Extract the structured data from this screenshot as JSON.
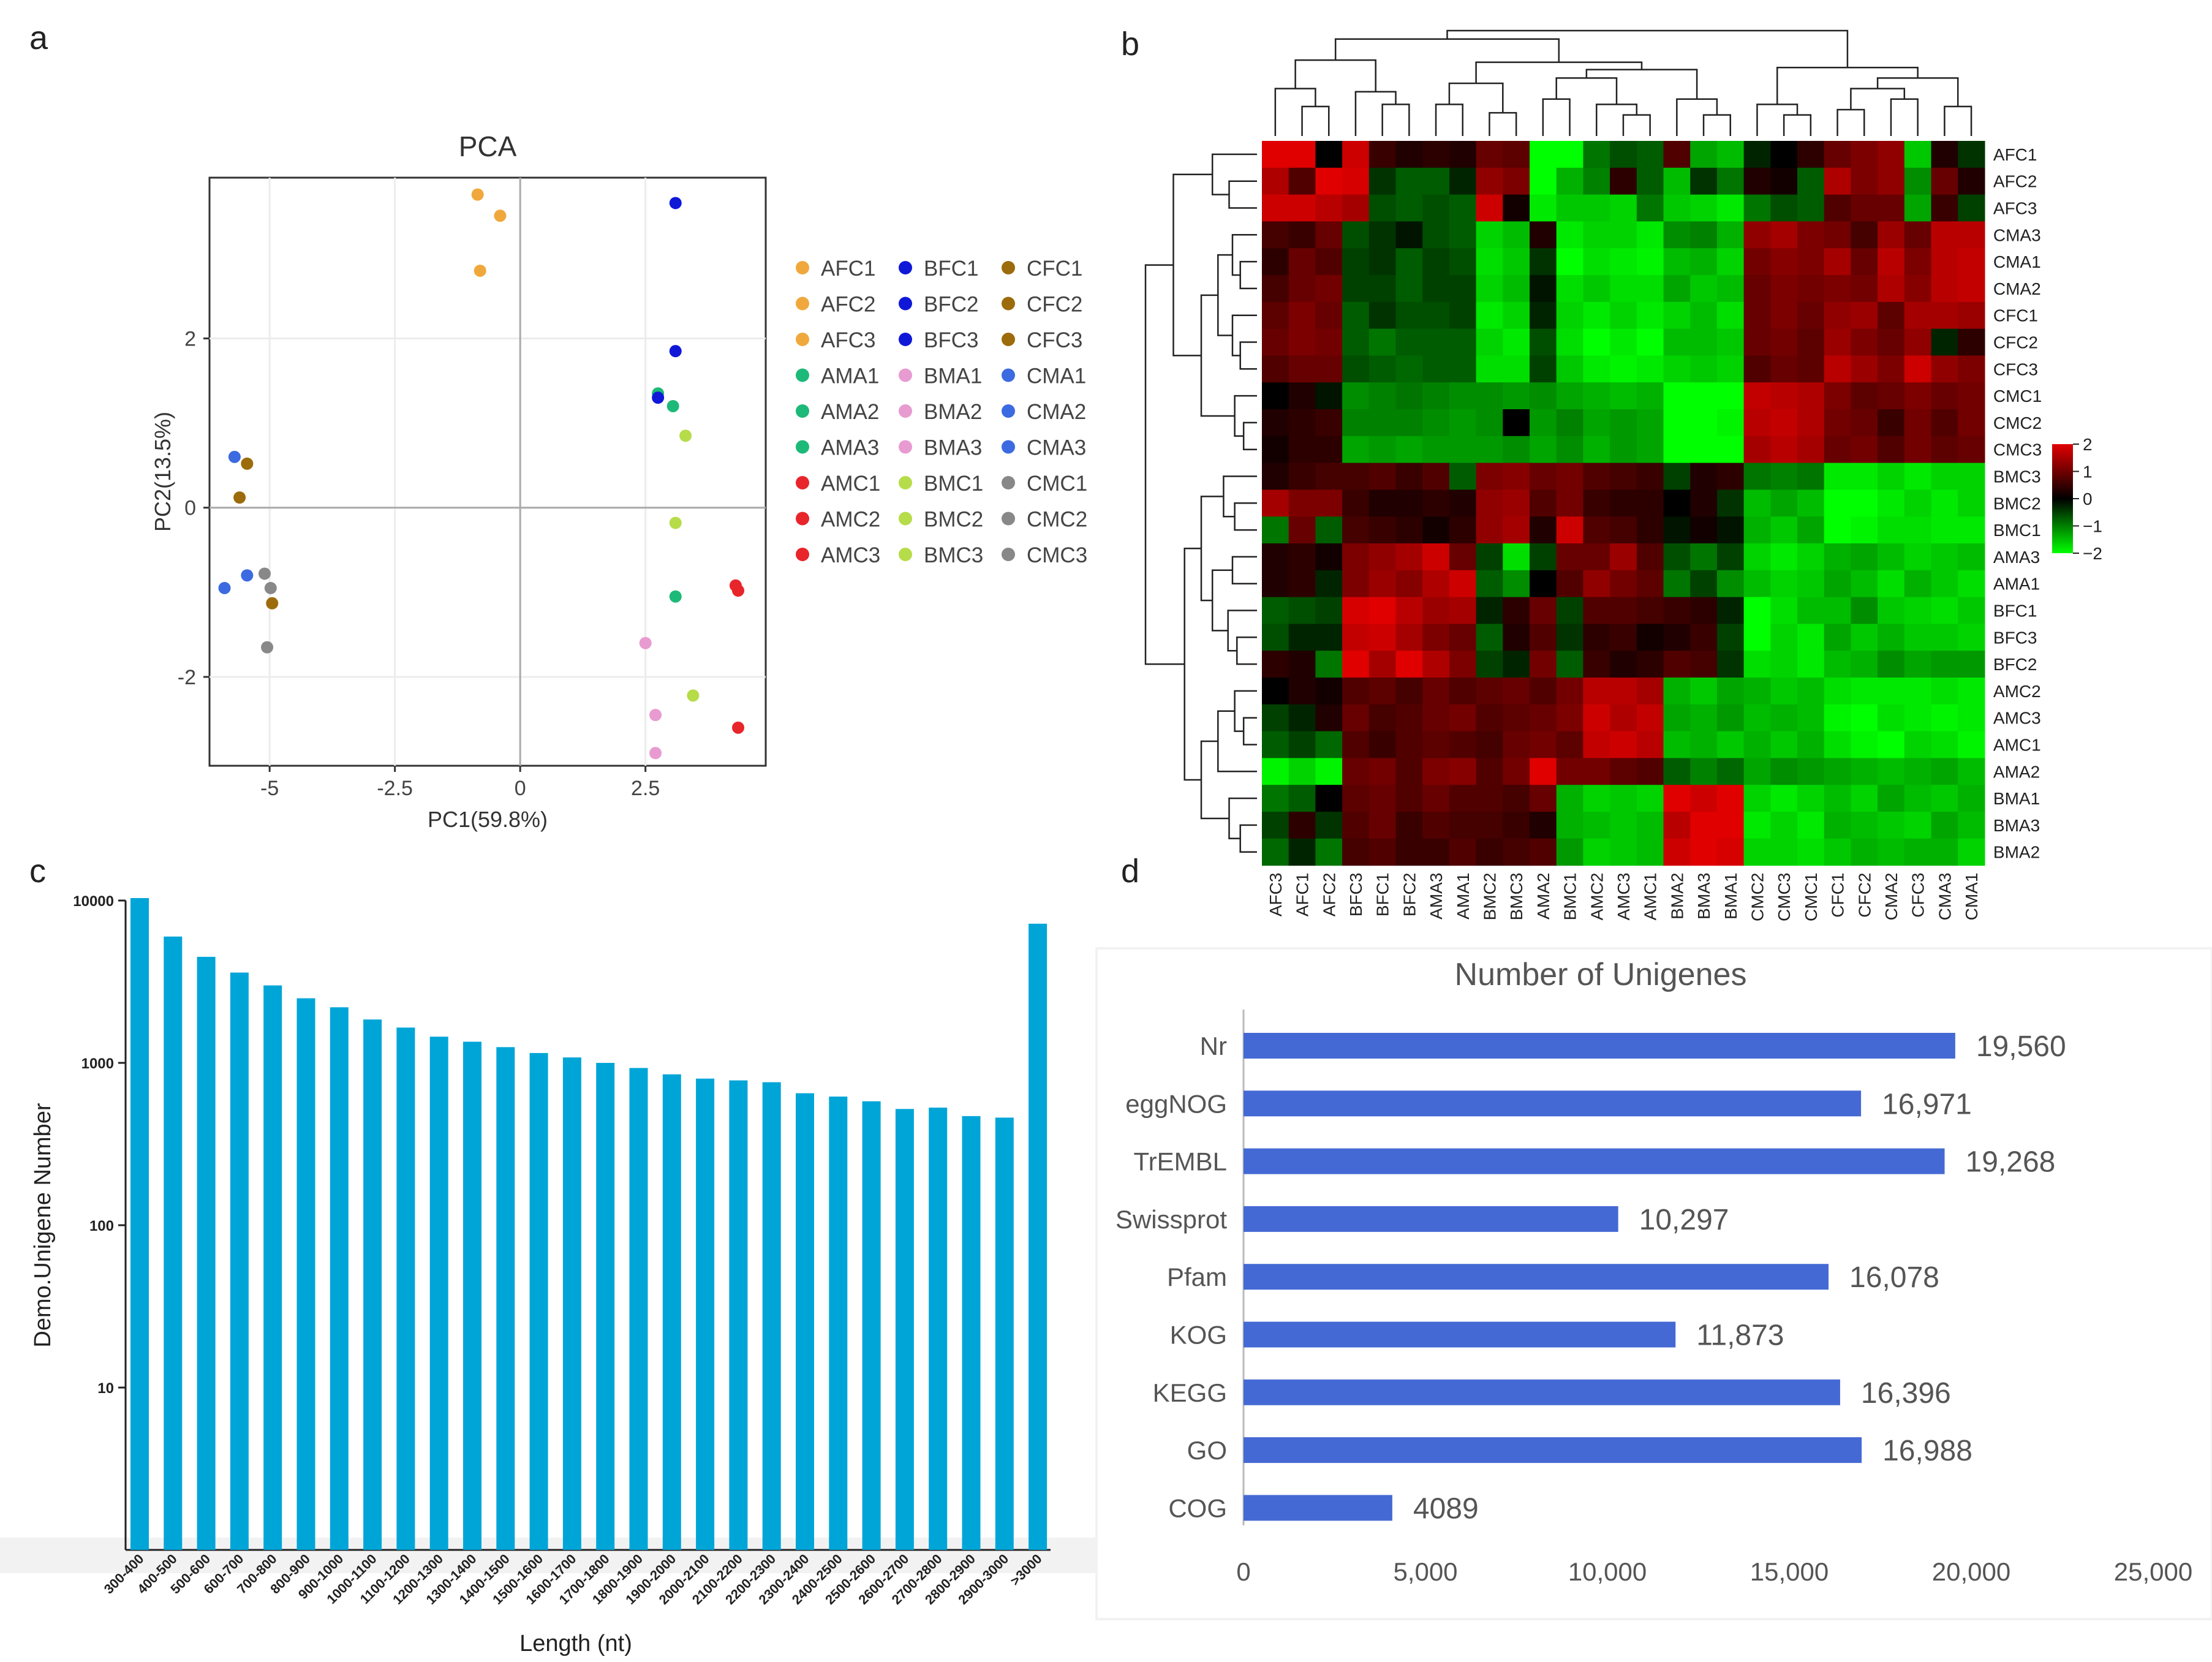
{
  "panel_labels": [
    "a",
    "b",
    "c",
    "d"
  ],
  "colors": {
    "AF": "#f0a83c",
    "AMA": "#1db979",
    "AMC": "#e8252b",
    "BFC": "#1018d8",
    "BMA": "#e89bd0",
    "BMC": "#b6dc4a",
    "CFC": "#9c6b0c",
    "CMA": "#3c6ae0",
    "CMC": "#888888",
    "bar_c": "#00a5d8",
    "bar_d": "#4569d4",
    "heat_high": "#e00000",
    "heat_mid": "#000000",
    "heat_low": "#00ff00"
  },
  "chart_data": [
    {
      "type": "scatter",
      "title": "PCA",
      "xlabel": "PC1(59.8%)",
      "ylabel": "PC2(13.5%)",
      "xlim": [
        -6.2,
        4.9
      ],
      "ylim": [
        -3.05,
        3.9
      ],
      "xticks": [
        -5,
        -2.5,
        0,
        2.5
      ],
      "xtick_labels": [
        "-5",
        "-2.5",
        "0",
        "2.5"
      ],
      "yticks": [
        -2,
        0,
        2
      ],
      "ytick_labels": [
        "-2",
        "0",
        "2"
      ],
      "grid": true,
      "legend_position": "right",
      "series": [
        {
          "name": "AFC1",
          "color": "#f0a83c",
          "x": -0.4,
          "y": 3.45
        },
        {
          "name": "AFC2",
          "color": "#f0a83c",
          "x": -0.8,
          "y": 2.8
        },
        {
          "name": "AFC3",
          "color": "#f0a83c",
          "x": -0.85,
          "y": 3.7
        },
        {
          "name": "AMA1",
          "color": "#1db979",
          "x": 2.75,
          "y": 1.35
        },
        {
          "name": "AMA2",
          "color": "#1db979",
          "x": 3.1,
          "y": -1.05
        },
        {
          "name": "AMA3",
          "color": "#1db979",
          "x": 3.05,
          "y": 1.2
        },
        {
          "name": "AMC1",
          "color": "#e8252b",
          "x": 4.35,
          "y": -0.98
        },
        {
          "name": "AMC2",
          "color": "#e8252b",
          "x": 4.3,
          "y": -0.92
        },
        {
          "name": "AMC3",
          "color": "#e8252b",
          "x": 4.35,
          "y": -2.6
        },
        {
          "name": "BFC1",
          "color": "#1018d8",
          "x": 3.1,
          "y": 3.6
        },
        {
          "name": "BFC2",
          "color": "#1018d8",
          "x": 3.1,
          "y": 1.85
        },
        {
          "name": "BFC3",
          "color": "#1018d8",
          "x": 2.75,
          "y": 1.3
        },
        {
          "name": "BMA1",
          "color": "#e89bd0",
          "x": 2.5,
          "y": -1.6
        },
        {
          "name": "BMA2",
          "color": "#e89bd0",
          "x": 2.7,
          "y": -2.45
        },
        {
          "name": "BMA3",
          "color": "#e89bd0",
          "x": 2.7,
          "y": -2.9
        },
        {
          "name": "BMC1",
          "color": "#b6dc4a",
          "x": 3.3,
          "y": 0.85
        },
        {
          "name": "BMC2",
          "color": "#b6dc4a",
          "x": 3.1,
          "y": -0.18
        },
        {
          "name": "BMC3",
          "color": "#b6dc4a",
          "x": 3.45,
          "y": -2.22
        },
        {
          "name": "CFC1",
          "color": "#9c6b0c",
          "x": -5.45,
          "y": 0.52
        },
        {
          "name": "CFC2",
          "color": "#9c6b0c",
          "x": -5.6,
          "y": 0.12
        },
        {
          "name": "CFC3",
          "color": "#9c6b0c",
          "x": -4.95,
          "y": -1.13
        },
        {
          "name": "CMA1",
          "color": "#3c6ae0",
          "x": -5.7,
          "y": 0.6
        },
        {
          "name": "CMA2",
          "color": "#3c6ae0",
          "x": -5.45,
          "y": -0.8
        },
        {
          "name": "CMA3",
          "color": "#3c6ae0",
          "x": -5.9,
          "y": -0.95
        },
        {
          "name": "CMC1",
          "color": "#888888",
          "x": -5.1,
          "y": -0.78
        },
        {
          "name": "CMC2",
          "color": "#888888",
          "x": -4.98,
          "y": -0.95
        },
        {
          "name": "CMC3",
          "color": "#888888",
          "x": -5.05,
          "y": -1.65
        }
      ]
    },
    {
      "type": "heatmap",
      "rows": [
        "AFC1",
        "AFC2",
        "AFC3",
        "CMA3",
        "CMA1",
        "CMA2",
        "CFC1",
        "CFC2",
        "CFC3",
        "CMC1",
        "CMC2",
        "CMC3",
        "BMC3",
        "BMC2",
        "BMC1",
        "AMA3",
        "AMA1",
        "BFC1",
        "BFC3",
        "BFC2",
        "AMC2",
        "AMC3",
        "AMC1",
        "AMA2",
        "BMA1",
        "BMA3",
        "BMA2"
      ],
      "columns": [
        "AFC3",
        "AFC1",
        "AFC2",
        "BFC3",
        "BFC1",
        "BFC2",
        "AMA3",
        "AMA1",
        "BMC2",
        "BMC3",
        "AMA2",
        "BMC1",
        "AMC2",
        "AMC3",
        "AMC1",
        "BMA2",
        "BMA3",
        "BMA1",
        "CMC2",
        "CMC3",
        "CMC1",
        "CFC1",
        "CFC2",
        "CMA2",
        "CFC3",
        "CMA3",
        "CMA1"
      ],
      "colorbar": {
        "ticks": [
          2,
          1,
          0,
          -1,
          -2
        ],
        "labels": [
          "2",
          "1",
          "0",
          "−1",
          "−2"
        ],
        "range": [
          -2,
          2
        ]
      },
      "values": [
        [
          2.0,
          2.0,
          0.0,
          1.8,
          0.4,
          0.2,
          0.3,
          0.2,
          0.8,
          0.7,
          -2.0,
          -2.0,
          -0.8,
          -0.5,
          -0.6,
          0.6,
          -1.2,
          -1.4,
          -0.2,
          0.0,
          0.3,
          0.8,
          1.0,
          1.2,
          -1.5,
          0.2,
          -0.3
        ],
        [
          1.5,
          0.6,
          2.0,
          1.9,
          -0.3,
          -0.6,
          -0.6,
          -0.2,
          1.2,
          1.0,
          -2.0,
          -1.3,
          -0.9,
          0.3,
          -0.6,
          -1.4,
          -0.3,
          -0.8,
          0.2,
          0.1,
          -0.6,
          1.5,
          1.0,
          1.2,
          -1.0,
          0.8,
          0.2
        ],
        [
          1.8,
          1.8,
          1.6,
          1.4,
          -0.5,
          -0.6,
          -0.5,
          -0.6,
          1.8,
          0.1,
          -1.8,
          -1.5,
          -1.5,
          -1.6,
          -0.8,
          -1.5,
          -1.6,
          -1.8,
          -0.8,
          -0.5,
          -0.6,
          0.6,
          0.8,
          0.8,
          -1.2,
          0.4,
          -0.4
        ],
        [
          0.5,
          0.4,
          0.8,
          -0.5,
          -0.3,
          -0.1,
          -0.5,
          -0.6,
          -1.6,
          -1.4,
          0.2,
          -1.8,
          -1.6,
          -1.6,
          -1.8,
          -1.0,
          -0.9,
          -1.3,
          1.2,
          1.4,
          1.0,
          0.9,
          0.5,
          1.3,
          0.8,
          1.6,
          1.6
        ],
        [
          0.3,
          0.8,
          0.6,
          -0.4,
          -0.3,
          -0.6,
          -0.4,
          -0.5,
          -1.7,
          -1.5,
          -0.3,
          -2.0,
          -1.7,
          -1.8,
          -1.9,
          -1.4,
          -1.3,
          -1.6,
          0.9,
          1.1,
          1.0,
          1.4,
          0.8,
          1.6,
          1.0,
          1.6,
          1.7
        ],
        [
          0.5,
          0.8,
          0.9,
          -0.4,
          -0.4,
          -0.6,
          -0.4,
          -0.4,
          -1.6,
          -1.4,
          -0.1,
          -1.7,
          -1.5,
          -1.7,
          -1.7,
          -1.2,
          -1.5,
          -1.4,
          0.8,
          1.0,
          0.9,
          1.0,
          0.9,
          1.5,
          1.1,
          1.6,
          1.7
        ],
        [
          0.7,
          1.0,
          0.8,
          -0.6,
          -0.3,
          -0.5,
          -0.5,
          -0.4,
          -1.8,
          -1.6,
          -0.2,
          -1.6,
          -1.8,
          -1.6,
          -1.8,
          -1.6,
          -1.4,
          -1.7,
          0.8,
          1.0,
          0.8,
          1.2,
          1.3,
          0.7,
          1.4,
          1.4,
          1.3
        ],
        [
          0.8,
          1.0,
          0.9,
          -0.6,
          -0.8,
          -0.6,
          -0.6,
          -0.6,
          -1.6,
          -1.8,
          -0.5,
          -1.7,
          -2.0,
          -1.8,
          -2.0,
          -1.4,
          -1.4,
          -1.5,
          0.8,
          0.9,
          0.7,
          1.3,
          1.0,
          0.8,
          1.2,
          -0.2,
          0.3
        ],
        [
          0.6,
          0.8,
          0.8,
          -0.5,
          -0.6,
          -0.7,
          -0.6,
          -0.6,
          -1.7,
          -1.7,
          -0.4,
          -1.5,
          -1.8,
          -1.9,
          -1.8,
          -1.6,
          -1.5,
          -1.6,
          0.6,
          0.8,
          0.7,
          1.6,
          1.3,
          1.0,
          1.8,
          1.2,
          1.0
        ],
        [
          0.0,
          0.2,
          -0.1,
          -1.0,
          -0.9,
          -0.8,
          -0.9,
          -1.0,
          -1.0,
          -1.1,
          -1.0,
          -1.2,
          -1.3,
          -1.4,
          -1.3,
          -2.0,
          -2.0,
          -2.0,
          1.7,
          1.6,
          1.5,
          1.0,
          0.7,
          0.8,
          1.0,
          0.8,
          0.9
        ],
        [
          0.2,
          0.3,
          0.4,
          -0.9,
          -0.9,
          -0.9,
          -1.0,
          -1.1,
          -1.0,
          0.0,
          -1.1,
          -0.9,
          -1.2,
          -1.1,
          -1.2,
          -2.0,
          -2.0,
          -1.9,
          1.6,
          1.7,
          1.5,
          0.9,
          0.8,
          0.4,
          0.9,
          0.6,
          0.9
        ],
        [
          0.1,
          0.3,
          0.3,
          -1.2,
          -1.1,
          -1.2,
          -1.1,
          -1.1,
          -1.1,
          -1.0,
          -1.2,
          -1.0,
          -1.3,
          -1.1,
          -1.2,
          -2.0,
          -2.0,
          -2.0,
          1.4,
          1.6,
          1.4,
          0.8,
          0.9,
          0.6,
          0.9,
          0.7,
          0.8
        ],
        [
          0.2,
          0.4,
          0.5,
          0.5,
          0.6,
          0.4,
          0.6,
          -0.6,
          1.0,
          1.1,
          0.8,
          0.9,
          0.6,
          0.5,
          0.4,
          -0.4,
          0.2,
          0.3,
          -0.8,
          -0.9,
          -0.8,
          -1.8,
          -1.8,
          -1.6,
          -1.8,
          -1.6,
          -1.6
        ],
        [
          1.4,
          1.0,
          1.0,
          0.4,
          0.2,
          0.2,
          0.3,
          0.2,
          1.2,
          1.3,
          0.6,
          0.9,
          0.4,
          0.3,
          0.3,
          0.0,
          0.2,
          -0.3,
          -1.4,
          -1.2,
          -1.4,
          -2.0,
          -2.0,
          -1.8,
          -1.6,
          -1.8,
          -1.6
        ],
        [
          -0.8,
          0.8,
          -0.6,
          0.5,
          0.4,
          0.3,
          0.1,
          0.3,
          1.2,
          1.4,
          0.2,
          1.8,
          0.6,
          0.5,
          0.3,
          -0.1,
          0.1,
          -0.1,
          -1.3,
          -1.5,
          -1.2,
          -2.0,
          -1.9,
          -1.7,
          -1.7,
          -1.8,
          -1.8
        ],
        [
          0.2,
          0.3,
          0.1,
          1.0,
          1.2,
          1.4,
          1.8,
          0.8,
          -0.4,
          -1.7,
          -0.4,
          0.8,
          0.8,
          1.3,
          0.6,
          -0.5,
          -0.8,
          -0.4,
          -1.6,
          -1.8,
          -1.6,
          -1.3,
          -1.2,
          -1.4,
          -1.6,
          -1.5,
          -1.4
        ],
        [
          0.2,
          0.3,
          -0.2,
          1.0,
          1.3,
          1.1,
          1.5,
          1.8,
          -0.6,
          -1.0,
          0.0,
          0.6,
          1.2,
          0.9,
          0.7,
          -0.8,
          -0.4,
          -1.0,
          -1.4,
          -1.6,
          -1.5,
          -1.2,
          -1.4,
          -1.7,
          -1.3,
          -1.5,
          -1.7
        ],
        [
          -0.6,
          -0.5,
          -0.4,
          1.9,
          2.0,
          1.6,
          1.3,
          1.4,
          -0.2,
          0.3,
          0.8,
          -0.4,
          0.6,
          0.6,
          0.5,
          0.4,
          0.3,
          -0.2,
          -2.0,
          -1.7,
          -1.4,
          -1.4,
          -1.0,
          -1.5,
          -1.6,
          -1.7,
          -1.5
        ],
        [
          -0.5,
          -0.2,
          -0.2,
          1.7,
          1.8,
          1.4,
          1.0,
          0.8,
          -0.6,
          0.2,
          0.6,
          -0.3,
          0.3,
          0.4,
          0.1,
          0.2,
          0.4,
          -0.4,
          -2.0,
          -1.6,
          -1.8,
          -1.2,
          -1.5,
          -1.3,
          -1.5,
          -1.5,
          -1.6
        ],
        [
          0.3,
          0.2,
          -0.8,
          2.0,
          1.4,
          2.0,
          1.5,
          1.0,
          -0.4,
          -0.2,
          0.9,
          -0.6,
          0.4,
          0.2,
          0.3,
          0.6,
          0.5,
          -0.3,
          -1.7,
          -1.6,
          -1.8,
          -1.4,
          -1.3,
          -1.0,
          -1.2,
          -1.1,
          -1.1
        ],
        [
          0.0,
          0.2,
          0.1,
          0.6,
          0.7,
          0.5,
          0.8,
          0.6,
          0.7,
          0.8,
          0.6,
          0.9,
          1.6,
          1.6,
          1.4,
          -1.3,
          -1.5,
          -1.2,
          -1.3,
          -1.5,
          -1.4,
          -1.7,
          -1.8,
          -1.8,
          -1.8,
          -1.7,
          -1.8
        ],
        [
          -0.4,
          -0.2,
          0.2,
          0.8,
          0.5,
          0.6,
          0.8,
          0.9,
          0.6,
          0.7,
          0.8,
          1.0,
          1.8,
          1.5,
          1.7,
          -1.2,
          -1.3,
          -1.1,
          -1.4,
          -1.3,
          -1.4,
          -1.9,
          -2.0,
          -1.7,
          -1.8,
          -1.9,
          -1.8
        ],
        [
          -0.6,
          -0.4,
          -0.7,
          0.6,
          0.4,
          0.6,
          0.7,
          0.6,
          0.5,
          0.8,
          0.9,
          0.7,
          1.7,
          1.8,
          1.6,
          -1.4,
          -1.3,
          -1.5,
          -1.3,
          -1.5,
          -1.3,
          -1.7,
          -1.9,
          -2.0,
          -1.6,
          -1.7,
          -1.9
        ],
        [
          -1.9,
          -1.6,
          -1.9,
          0.8,
          0.9,
          0.6,
          1.0,
          1.1,
          0.6,
          0.9,
          2.0,
          0.9,
          0.9,
          0.7,
          0.6,
          -0.6,
          -0.9,
          -0.7,
          -1.2,
          -1.0,
          -1.1,
          -1.2,
          -1.3,
          -1.4,
          -1.3,
          -1.2,
          -1.4
        ],
        [
          -0.8,
          -0.6,
          0.0,
          0.7,
          0.8,
          0.6,
          0.8,
          0.6,
          0.6,
          0.5,
          0.8,
          -1.3,
          -1.6,
          -1.5,
          -1.6,
          2.0,
          1.8,
          2.0,
          -1.6,
          -1.8,
          -1.6,
          -1.4,
          -1.6,
          -1.2,
          -1.4,
          -1.5,
          -1.3
        ],
        [
          -0.4,
          0.3,
          -0.3,
          0.6,
          0.8,
          0.4,
          0.6,
          0.5,
          0.5,
          0.4,
          0.2,
          -1.3,
          -1.4,
          -1.5,
          -1.4,
          1.6,
          2.0,
          2.0,
          -1.8,
          -1.6,
          -1.8,
          -1.3,
          -1.4,
          -1.5,
          -1.6,
          -1.2,
          -1.4
        ],
        [
          -0.7,
          -0.2,
          -0.8,
          0.5,
          0.6,
          0.4,
          0.4,
          0.6,
          0.4,
          0.5,
          0.6,
          -1.1,
          -1.6,
          -1.5,
          -1.4,
          1.8,
          2.0,
          1.9,
          -1.6,
          -1.6,
          -1.7,
          -1.5,
          -1.3,
          -1.4,
          -1.3,
          -1.3,
          -1.6
        ]
      ]
    },
    {
      "type": "bar",
      "xlabel": "Length (nt)",
      "ylabel": "Demo.Unigene Number",
      "yscale": "log",
      "ylim": [
        1,
        10000
      ],
      "yticks": [
        10,
        100,
        1000,
        10000
      ],
      "ytick_labels": [
        "10",
        "100",
        "1000",
        "10000"
      ],
      "categories": [
        "300-400",
        "400-500",
        "500-600",
        "600-700",
        "700-800",
        "800-900",
        "900-1000",
        "1000-1100",
        "1100-1200",
        "1200-1300",
        "1300-1400",
        "1400-1500",
        "1500-1600",
        "1600-1700",
        "1700-1800",
        "1800-1900",
        "1900-2000",
        "2000-2100",
        "2100-2200",
        "2200-2300",
        "2300-2400",
        "2400-2500",
        "2500-2600",
        "2600-2700",
        "2700-2800",
        "2800-2900",
        "2900-3000",
        ">3000"
      ],
      "values": [
        10500,
        6000,
        4500,
        3600,
        3000,
        2500,
        2200,
        1850,
        1650,
        1450,
        1350,
        1250,
        1150,
        1080,
        1000,
        930,
        850,
        800,
        780,
        760,
        650,
        620,
        580,
        520,
        530,
        470,
        460,
        7200
      ]
    },
    {
      "type": "bar",
      "orientation": "horizontal",
      "title": "Number of Unigenes",
      "categories": [
        "Nr",
        "eggNOG",
        "TrEMBL",
        "Swissprot",
        "Pfam",
        "KOG",
        "KEGG",
        "GO",
        "COG"
      ],
      "values": [
        19560,
        16971,
        19268,
        10297,
        16078,
        11873,
        16396,
        16988,
        4089
      ],
      "value_labels": [
        "19,560",
        "16,971",
        "19,268",
        "10,297",
        "16,078",
        "11,873",
        "16,396",
        "16,988",
        "4089"
      ],
      "xlim": [
        0,
        25000
      ],
      "xticks": [
        0,
        5000,
        10000,
        15000,
        20000,
        25000
      ],
      "xtick_labels": [
        "0",
        "5,000",
        "10,000",
        "15,000",
        "20,000",
        "25,000"
      ]
    }
  ]
}
